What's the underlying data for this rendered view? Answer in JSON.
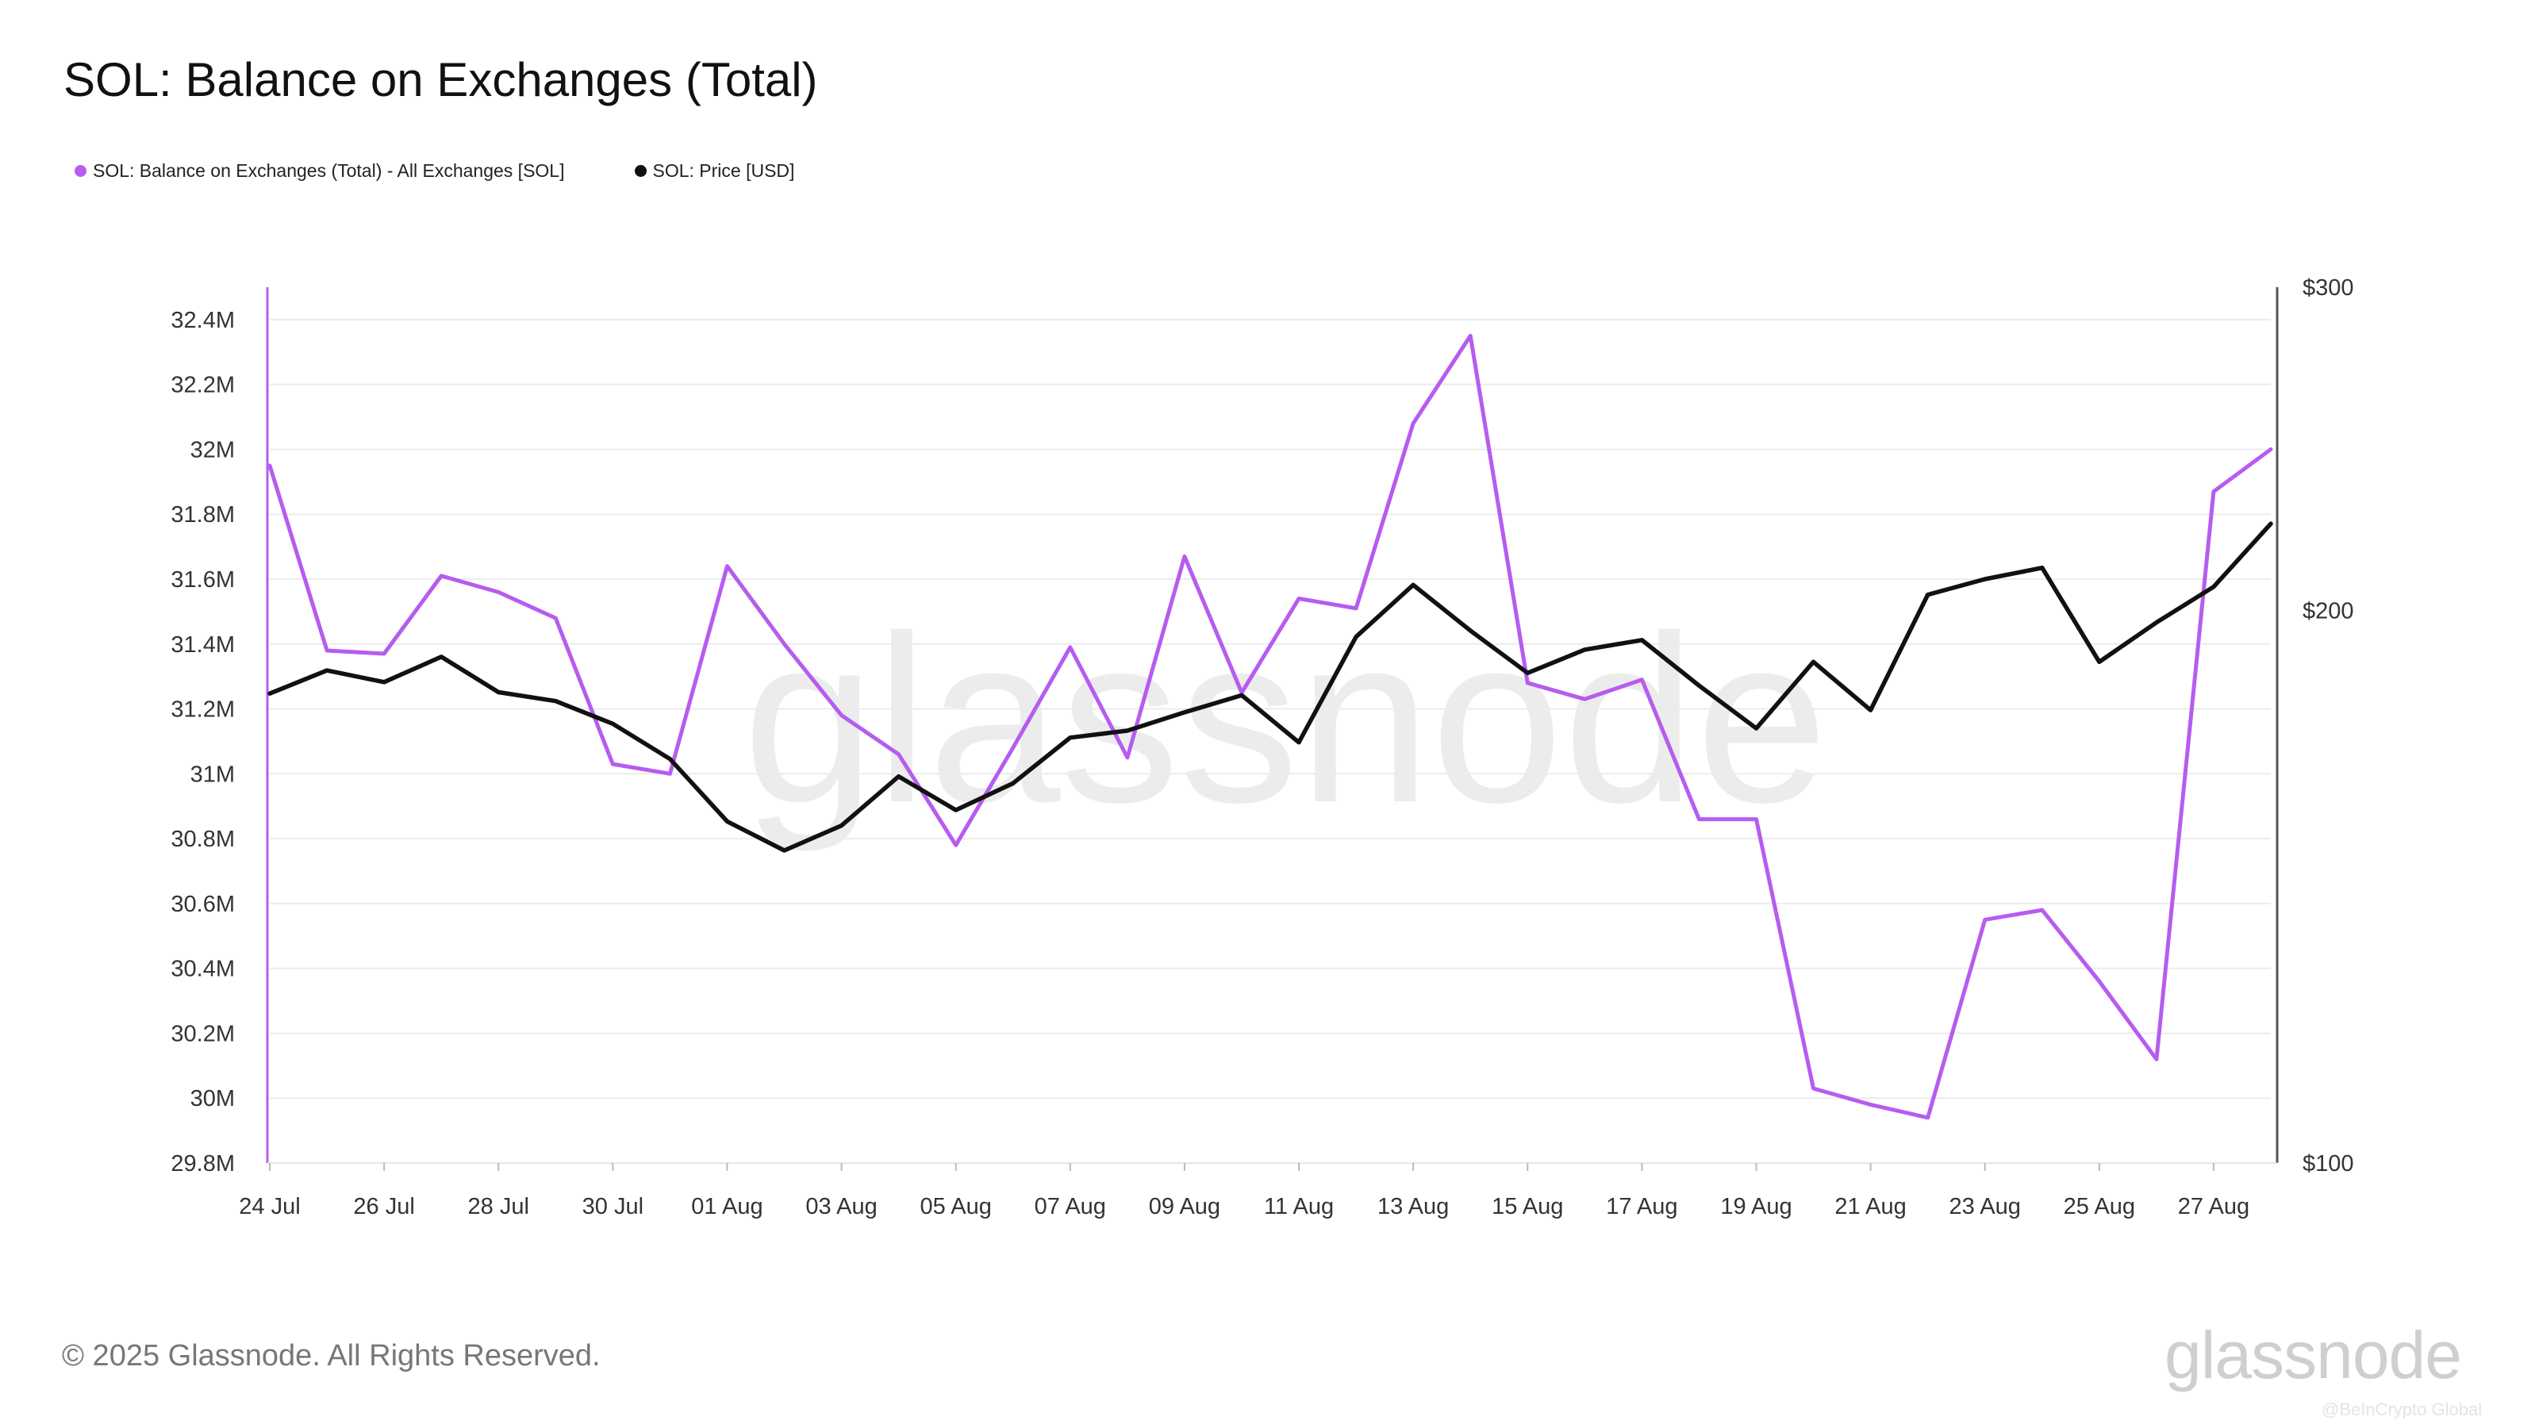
{
  "title": "SOL: Balance on Exchanges (Total)",
  "colors": {
    "balance": "#b65cf0",
    "price": "#111111",
    "grid": "#ececec"
  },
  "footer": {
    "copyright": "© 2025 Glassnode. All Rights Reserved.",
    "brand": "glassnode",
    "credit": "@BeInCrypto Global"
  },
  "chart_data": {
    "type": "line",
    "watermark": "glassnode",
    "x": [
      "24 Jul",
      "25 Jul",
      "26 Jul",
      "27 Jul",
      "28 Jul",
      "29 Jul",
      "30 Jul",
      "31 Jul",
      "01 Aug",
      "02 Aug",
      "03 Aug",
      "04 Aug",
      "05 Aug",
      "06 Aug",
      "07 Aug",
      "08 Aug",
      "09 Aug",
      "10 Aug",
      "11 Aug",
      "12 Aug",
      "13 Aug",
      "14 Aug",
      "15 Aug",
      "16 Aug",
      "17 Aug",
      "18 Aug",
      "19 Aug",
      "20 Aug",
      "21 Aug",
      "22 Aug",
      "23 Aug",
      "24 Aug",
      "25 Aug",
      "26 Aug",
      "27 Aug",
      "28 Aug"
    ],
    "x_tick_labels": [
      "24 Jul",
      "26 Jul",
      "28 Jul",
      "30 Jul",
      "01 Aug",
      "03 Aug",
      "05 Aug",
      "07 Aug",
      "09 Aug",
      "11 Aug",
      "13 Aug",
      "15 Aug",
      "17 Aug",
      "19 Aug",
      "21 Aug",
      "23 Aug",
      "25 Aug",
      "27 Aug"
    ],
    "y_left": {
      "ticks": [
        29.8,
        30.0,
        30.2,
        30.4,
        30.6,
        30.8,
        31.0,
        31.2,
        31.4,
        31.6,
        31.8,
        32.0,
        32.2,
        32.4
      ],
      "tick_labels": [
        "29.8M",
        "30M",
        "30.2M",
        "30.4M",
        "30.6M",
        "30.8M",
        "31M",
        "31.2M",
        "31.4M",
        "31.6M",
        "31.8M",
        "32M",
        "32.2M",
        "32.4M"
      ],
      "range": [
        29.8,
        32.5
      ],
      "unit": "M SOL"
    },
    "y_right": {
      "ticks": [
        100,
        200,
        300
      ],
      "tick_labels": [
        "$100",
        "$200",
        "$300"
      ],
      "range": [
        100,
        300
      ],
      "scale": "log"
    },
    "grid": true,
    "legend_position": "top-left",
    "series": [
      {
        "name": "SOL: Balance on Exchanges (Total) - All Exchanges [SOL]",
        "axis": "left",
        "color": "#b65cf0",
        "values": [
          31.95,
          31.38,
          31.37,
          31.61,
          31.56,
          31.48,
          31.03,
          31.0,
          31.64,
          31.4,
          31.18,
          31.06,
          30.78,
          31.08,
          31.39,
          31.05,
          31.67,
          31.25,
          31.54,
          31.51,
          32.08,
          32.35,
          31.28,
          31.23,
          31.29,
          30.86,
          30.86,
          30.03,
          29.98,
          29.94,
          30.55,
          30.58,
          30.36,
          30.12,
          31.87,
          32.0
        ]
      },
      {
        "name": "SOL: Price [USD]",
        "axis": "right",
        "color": "#111111",
        "values": [
          180.2,
          185.5,
          182.8,
          188.7,
          180.5,
          178.5,
          173.5,
          166.0,
          153.5,
          148.0,
          152.7,
          162.4,
          155.7,
          161.0,
          170.5,
          172.0,
          176.0,
          179.8,
          169.5,
          193.5,
          206.5,
          195.0,
          184.9,
          190.4,
          192.7,
          182.0,
          172.5,
          187.5,
          176.5,
          204.0,
          208.0,
          211.0,
          187.5,
          197.0,
          206.0,
          223.0
        ]
      }
    ]
  }
}
